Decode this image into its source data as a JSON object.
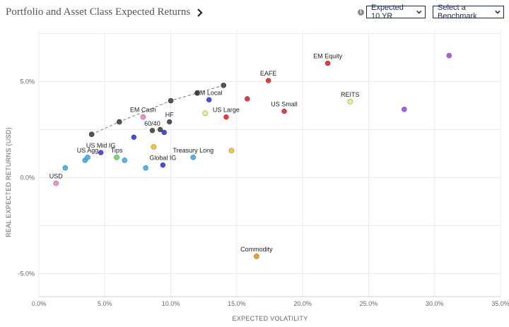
{
  "header": {
    "title": "Portfolio and Asset Class Expected Returns",
    "horizon_select": "Expected 10 YR",
    "benchmark_select": "Select a Benchmark",
    "info_icon": "info-icon",
    "chevron_icon": "chevron-right-icon",
    "dropdown_icon": "chevron-down-icon"
  },
  "chart_data": {
    "type": "scatter",
    "xlabel": "EXPECTED VOLATILITY",
    "ylabel": "REAL EXPECTED RETURNS (USD)",
    "xlim": [
      0,
      35
    ],
    "ylim": [
      -6.2,
      7.7
    ],
    "x_ticks": [
      0,
      5,
      10,
      15,
      20,
      25,
      30,
      35
    ],
    "x_tick_labels": [
      "0.0%",
      "5.0%",
      "10.0%",
      "15.0%",
      "20.0%",
      "25.0%",
      "30.0%",
      "35.0%"
    ],
    "y_ticks": [
      -5,
      0,
      5
    ],
    "y_tick_labels": [
      "-5.0%",
      "0.0%",
      "5.0%"
    ],
    "grid": true,
    "frontier": {
      "color": "#555555",
      "points": [
        {
          "x": 4.0,
          "y": 2.25
        },
        {
          "x": 6.1,
          "y": 2.9
        },
        {
          "x": 10.0,
          "y": 4.0
        },
        {
          "x": 12.0,
          "y": 4.4
        },
        {
          "x": 14.0,
          "y": 4.8
        }
      ]
    },
    "points": [
      {
        "x": 1.3,
        "y": -0.3,
        "color": "#f48fd4",
        "label": "USD"
      },
      {
        "x": 2.0,
        "y": 0.5,
        "color": "#4ab8f0",
        "label": ""
      },
      {
        "x": 3.5,
        "y": 0.9,
        "color": "#4ab8f0",
        "label": ""
      },
      {
        "x": 3.7,
        "y": 1.05,
        "color": "#4ab8f0",
        "label": "US Agg"
      },
      {
        "x": 4.7,
        "y": 1.3,
        "color": "#4a4ae8",
        "label": "US Mid IG"
      },
      {
        "x": 5.9,
        "y": 1.05,
        "color": "#6ee06e",
        "label": "Tips"
      },
      {
        "x": 6.5,
        "y": 0.9,
        "color": "#4ab8f0",
        "label": ""
      },
      {
        "x": 7.2,
        "y": 2.1,
        "color": "#4a4ae8",
        "label": ""
      },
      {
        "x": 7.9,
        "y": 3.15,
        "color": "#f48fd4",
        "label": "EM Cash"
      },
      {
        "x": 8.1,
        "y": 0.5,
        "color": "#4ab8f0",
        "label": ""
      },
      {
        "x": 8.7,
        "y": 1.6,
        "color": "#f5c842",
        "label": ""
      },
      {
        "x": 9.4,
        "y": 0.65,
        "color": "#4a4ae8",
        "label": "Global IG"
      },
      {
        "x": 9.5,
        "y": 2.35,
        "color": "#4a4ae8",
        "label": ""
      },
      {
        "x": 11.7,
        "y": 1.05,
        "color": "#4ab8f0",
        "label": "Treasury Long"
      },
      {
        "x": 12.6,
        "y": 3.35,
        "color": "#f7f08a",
        "label": ""
      },
      {
        "x": 12.9,
        "y": 4.05,
        "color": "#4a4ae8",
        "label": "EM Local"
      },
      {
        "x": 14.2,
        "y": 3.15,
        "color": "#e83a3a",
        "label": "US Large"
      },
      {
        "x": 14.6,
        "y": 1.4,
        "color": "#f5c842",
        "label": ""
      },
      {
        "x": 15.8,
        "y": 4.1,
        "color": "#e83a3a",
        "label": ""
      },
      {
        "x": 16.5,
        "y": -4.1,
        "color": "#f5a020",
        "label": "Commodity"
      },
      {
        "x": 17.4,
        "y": 5.05,
        "color": "#e83a3a",
        "label": "EAFE"
      },
      {
        "x": 18.6,
        "y": 3.45,
        "color": "#e83a3a",
        "label": "US Small"
      },
      {
        "x": 21.9,
        "y": 5.95,
        "color": "#e83a3a",
        "label": "EM Equity"
      },
      {
        "x": 23.6,
        "y": 3.95,
        "color": "#f7f08a",
        "label": "REITS"
      },
      {
        "x": 27.7,
        "y": 3.55,
        "color": "#b05ae8",
        "label": ""
      },
      {
        "x": 31.1,
        "y": 6.35,
        "color": "#b05ae8",
        "label": ""
      },
      {
        "x": 8.6,
        "y": 2.45,
        "color": "#555555",
        "label": "60/40"
      },
      {
        "x": 9.2,
        "y": 2.5,
        "color": "#555555",
        "label": ""
      },
      {
        "x": 9.9,
        "y": 2.9,
        "color": "#555555",
        "label": "HF"
      }
    ]
  }
}
